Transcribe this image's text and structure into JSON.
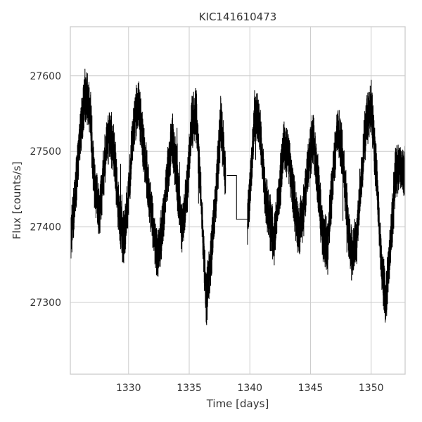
{
  "chart_data": {
    "type": "line",
    "title": "KIC141610473",
    "xlabel": "Time [days]",
    "ylabel": "Flux [counts/s]",
    "xlim": [
      1325.2,
      1352.8
    ],
    "ylim": [
      27205,
      27665
    ],
    "xticks": [
      1330,
      1335,
      1340,
      1345,
      1350
    ],
    "yticks": [
      27300,
      27400,
      27500,
      27600
    ],
    "grid": true,
    "legend": "none",
    "colors": {
      "line": "#000000",
      "grid": "#cccccc",
      "frame": "#cccccc"
    },
    "gap": {
      "start": 1338.0,
      "end": 1339.8,
      "flux_start": 27468,
      "flux_end": 27410
    },
    "series": [
      {
        "x": [
          1325.2,
          1325.6,
          1326.0,
          1326.4,
          1326.8,
          1327.2,
          1327.6,
          1328.0,
          1328.4,
          1328.8,
          1329.2,
          1329.6,
          1330.0,
          1330.4,
          1330.8,
          1331.2,
          1331.6,
          1332.0,
          1332.4,
          1332.8,
          1333.2,
          1333.6,
          1334.0,
          1334.4,
          1334.8,
          1335.2,
          1335.6,
          1336.0,
          1336.4,
          1336.8,
          1337.2,
          1337.6,
          1338.0,
          1339.8,
          1340.0,
          1340.4,
          1340.8,
          1341.2,
          1341.6,
          1342.0,
          1342.4,
          1342.8,
          1343.2,
          1343.6,
          1344.0,
          1344.4,
          1344.8,
          1345.2,
          1345.6,
          1346.0,
          1346.4,
          1346.8,
          1347.2,
          1347.6,
          1348.0,
          1348.4,
          1348.8,
          1349.2,
          1349.6,
          1350.0,
          1350.4,
          1350.8,
          1351.2,
          1351.6,
          1352.0,
          1352.4,
          1352.8
        ],
        "y": [
          27380,
          27440,
          27520,
          27575,
          27560,
          27450,
          27420,
          27480,
          27530,
          27500,
          27420,
          27380,
          27440,
          27530,
          27565,
          27510,
          27455,
          27400,
          27360,
          27400,
          27470,
          27520,
          27460,
          27400,
          27440,
          27540,
          27550,
          27430,
          27300,
          27360,
          27440,
          27540,
          27468,
          27410,
          27445,
          27550,
          27540,
          27455,
          27410,
          27380,
          27440,
          27510,
          27495,
          27440,
          27390,
          27420,
          27480,
          27520,
          27460,
          27390,
          27370,
          27460,
          27530,
          27500,
          27420,
          27360,
          27380,
          27470,
          27540,
          27560,
          27480,
          27360,
          27300,
          27380,
          27470,
          27480,
          27470
        ]
      }
    ]
  }
}
